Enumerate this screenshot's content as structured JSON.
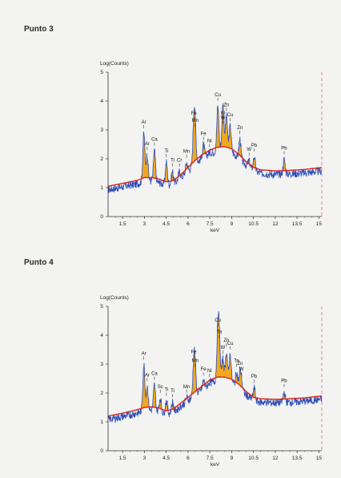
{
  "colors": {
    "spectrum": "#2c4fb8",
    "background_fit": "#e0201e",
    "peak_fill": "#f0a820",
    "axis": "#333333",
    "marker": "#e56a8a"
  },
  "chart_data": [
    {
      "type": "area",
      "title": "Punto 3",
      "ylabel": "Log(Counts)",
      "xlabel": "keV",
      "xlim": [
        0.5,
        15.2
      ],
      "ylim": [
        0,
        5
      ],
      "x_ticks": [
        1.5,
        3,
        4.5,
        6,
        7.5,
        9,
        10.5,
        12,
        13.5,
        15
      ],
      "x_tick_labels": [
        "1.5",
        "3",
        "4.5",
        "6",
        "7.5",
        "9",
        "10.5",
        "12",
        "13.5",
        "15"
      ],
      "y_ticks": [
        0,
        1,
        2,
        3,
        4,
        5
      ],
      "y_tick_labels": [
        "0",
        "1",
        "2",
        "3",
        "4",
        "5"
      ],
      "background": [
        [
          0.5,
          1.05
        ],
        [
          1.5,
          1.15
        ],
        [
          2.5,
          1.25
        ],
        [
          3.0,
          1.35
        ],
        [
          3.5,
          1.35
        ],
        [
          4.0,
          1.3
        ],
        [
          4.5,
          1.2
        ],
        [
          5.0,
          1.25
        ],
        [
          5.5,
          1.45
        ],
        [
          6.0,
          1.7
        ],
        [
          6.5,
          1.95
        ],
        [
          7.0,
          2.15
        ],
        [
          7.5,
          2.3
        ],
        [
          8.0,
          2.4
        ],
        [
          8.5,
          2.42
        ],
        [
          9.0,
          2.35
        ],
        [
          9.5,
          2.15
        ],
        [
          10.0,
          1.9
        ],
        [
          10.5,
          1.7
        ],
        [
          11.0,
          1.62
        ],
        [
          12.0,
          1.58
        ],
        [
          13.0,
          1.6
        ],
        [
          14.0,
          1.63
        ],
        [
          15.2,
          1.7
        ]
      ],
      "peaks": [
        {
          "label": "Ar",
          "x": 2.96,
          "y": 3.0
        },
        {
          "label": "Ar",
          "x": 3.19,
          "y": 2.25
        },
        {
          "label": "Ca",
          "x": 3.69,
          "y": 2.4
        },
        {
          "label": "Ti",
          "x": 4.51,
          "y": 2.0
        },
        {
          "label": "Ti",
          "x": 4.93,
          "y": 1.68
        },
        {
          "label": "Cr",
          "x": 5.41,
          "y": 1.68
        },
        {
          "label": "Mn",
          "x": 5.9,
          "y": 1.98
        },
        {
          "label": "Mn",
          "x": 6.49,
          "y": 3.05
        },
        {
          "label": "Fe",
          "x": 6.4,
          "y": 3.3
        },
        {
          "label": "Fe",
          "x": 7.06,
          "y": 2.6
        },
        {
          "label": "Ni",
          "x": 7.48,
          "y": 2.35
        },
        {
          "label": "Cu",
          "x": 8.05,
          "y": 3.95
        },
        {
          "label": "Zn",
          "x": 8.64,
          "y": 3.6
        },
        {
          "label": "W",
          "x": 8.4,
          "y": 3.3
        },
        {
          "label": "W",
          "x": 8.4,
          "y": 3.15
        },
        {
          "label": "Cu",
          "x": 8.9,
          "y": 3.25
        },
        {
          "label": "Zn",
          "x": 9.57,
          "y": 2.8
        },
        {
          "label": "W",
          "x": 10.2,
          "y": 2.05
        },
        {
          "label": "Pb",
          "x": 10.55,
          "y": 2.2
        },
        {
          "label": "Pb",
          "x": 12.61,
          "y": 2.1
        }
      ]
    },
    {
      "type": "area",
      "title": "Punto 4",
      "ylabel": "Log(Counts)",
      "xlabel": "keV",
      "xlim": [
        0.5,
        15.2
      ],
      "ylim": [
        0,
        5
      ],
      "x_ticks": [
        1.5,
        3,
        4.5,
        6,
        7.5,
        9,
        10.5,
        12,
        13.5,
        15
      ],
      "x_tick_labels": [
        "1.5",
        "3",
        "4.5",
        "6",
        "7.5",
        "9",
        "10.5",
        "12",
        "13.5",
        "15"
      ],
      "y_ticks": [
        0,
        1,
        2,
        3,
        4,
        5
      ],
      "y_tick_labels": [
        "0",
        "1",
        "2",
        "3",
        "4",
        "5"
      ],
      "background": [
        [
          0.5,
          1.2
        ],
        [
          1.5,
          1.3
        ],
        [
          2.5,
          1.42
        ],
        [
          3.0,
          1.5
        ],
        [
          3.5,
          1.52
        ],
        [
          4.0,
          1.48
        ],
        [
          4.5,
          1.38
        ],
        [
          5.0,
          1.45
        ],
        [
          5.5,
          1.65
        ],
        [
          6.0,
          1.85
        ],
        [
          6.5,
          2.05
        ],
        [
          7.0,
          2.25
        ],
        [
          7.5,
          2.45
        ],
        [
          8.0,
          2.55
        ],
        [
          8.5,
          2.55
        ],
        [
          9.0,
          2.48
        ],
        [
          9.5,
          2.3
        ],
        [
          10.0,
          2.05
        ],
        [
          10.5,
          1.85
        ],
        [
          11.0,
          1.8
        ],
        [
          12.0,
          1.78
        ],
        [
          13.0,
          1.8
        ],
        [
          14.0,
          1.83
        ],
        [
          15.2,
          1.9
        ]
      ],
      "peaks": [
        {
          "label": "Ar",
          "x": 2.96,
          "y": 3.1
        },
        {
          "label": "Ar",
          "x": 3.19,
          "y": 2.35
        },
        {
          "label": "Ca",
          "x": 3.69,
          "y": 2.4
        },
        {
          "label": "Sc",
          "x": 4.09,
          "y": 1.95
        },
        {
          "label": "Ti",
          "x": 4.51,
          "y": 1.85
        },
        {
          "label": "Ti",
          "x": 4.93,
          "y": 1.8
        },
        {
          "label": "Mn",
          "x": 5.9,
          "y": 1.95
        },
        {
          "label": "Mn",
          "x": 6.49,
          "y": 2.85
        },
        {
          "label": "Fe",
          "x": 6.4,
          "y": 3.15
        },
        {
          "label": "Fe",
          "x": 7.06,
          "y": 2.55
        },
        {
          "label": "Ni",
          "x": 7.48,
          "y": 2.5
        },
        {
          "label": "Cu",
          "x": 8.05,
          "y": 4.25
        },
        {
          "label": "Ta",
          "x": 8.15,
          "y": 3.85
        },
        {
          "label": "Zn",
          "x": 8.64,
          "y": 3.55
        },
        {
          "label": "W",
          "x": 8.4,
          "y": 3.3
        },
        {
          "label": "Cu",
          "x": 8.9,
          "y": 3.45
        },
        {
          "label": "Zn",
          "x": 9.57,
          "y": 2.75
        },
        {
          "label": "Ta",
          "x": 9.34,
          "y": 2.85
        },
        {
          "label": "W",
          "x": 9.67,
          "y": 2.55
        },
        {
          "label": "Pb",
          "x": 10.55,
          "y": 2.3
        },
        {
          "label": "Pb",
          "x": 12.61,
          "y": 2.15
        }
      ]
    }
  ]
}
